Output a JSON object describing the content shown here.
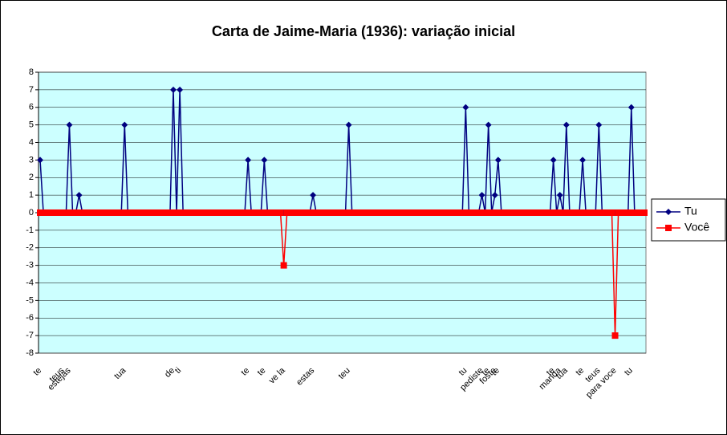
{
  "chart_data": {
    "type": "line",
    "title": "Carta de Jaime-Maria (1936): variação inicial",
    "categories": [
      "te",
      null,
      null,
      null,
      null,
      null,
      null,
      "teus",
      null,
      "estejas",
      null,
      null,
      null,
      null,
      null,
      null,
      null,
      null,
      null,
      null,
      null,
      null,
      null,
      null,
      null,
      null,
      "tua",
      null,
      null,
      null,
      null,
      null,
      null,
      null,
      null,
      null,
      null,
      null,
      null,
      null,
      null,
      "de",
      null,
      "ti",
      null,
      null,
      null,
      null,
      null,
      null,
      null,
      null,
      null,
      null,
      null,
      null,
      null,
      null,
      null,
      null,
      null,
      null,
      null,
      null,
      "te",
      null,
      null,
      null,
      null,
      "te",
      null,
      null,
      null,
      null,
      null,
      "ve la",
      null,
      null,
      null,
      null,
      null,
      null,
      null,
      null,
      "estas",
      null,
      null,
      null,
      null,
      null,
      null,
      null,
      null,
      null,
      null,
      "teu",
      null,
      null,
      null,
      null,
      null,
      null,
      null,
      null,
      null,
      null,
      null,
      null,
      null,
      null,
      null,
      null,
      null,
      null,
      null,
      null,
      null,
      null,
      null,
      null,
      null,
      null,
      null,
      null,
      null,
      null,
      null,
      null,
      null,
      null,
      null,
      "tu",
      null,
      null,
      null,
      null,
      "pediste",
      null,
      "te",
      null,
      "foste",
      "te",
      null,
      null,
      null,
      null,
      null,
      null,
      null,
      null,
      null,
      null,
      null,
      null,
      null,
      null,
      null,
      null,
      "te",
      null,
      "manda",
      null,
      "tua",
      null,
      null,
      null,
      null,
      "te",
      null,
      null,
      null,
      null,
      "teus",
      null,
      null,
      null,
      null,
      "para voce",
      null,
      null,
      null,
      null,
      "tu",
      null,
      null,
      null,
      null
    ],
    "series": [
      {
        "name": "Tu",
        "color": "#000080",
        "marker": "diamond",
        "values": [
          3,
          0,
          0,
          0,
          0,
          0,
          0,
          0,
          0,
          5,
          0,
          0,
          1,
          0,
          0,
          0,
          0,
          0,
          0,
          0,
          0,
          0,
          0,
          0,
          0,
          0,
          5,
          0,
          0,
          0,
          0,
          0,
          0,
          0,
          0,
          0,
          0,
          0,
          0,
          0,
          0,
          7,
          0,
          7,
          0,
          0,
          0,
          0,
          0,
          0,
          0,
          0,
          0,
          0,
          0,
          0,
          0,
          0,
          0,
          0,
          0,
          0,
          0,
          0,
          3,
          0,
          0,
          0,
          0,
          3,
          0,
          0,
          0,
          0,
          0,
          0,
          0,
          0,
          0,
          0,
          0,
          0,
          0,
          0,
          1,
          0,
          0,
          0,
          0,
          0,
          0,
          0,
          0,
          0,
          0,
          5,
          0,
          0,
          0,
          0,
          0,
          0,
          0,
          0,
          0,
          0,
          0,
          0,
          0,
          0,
          0,
          0,
          0,
          0,
          0,
          0,
          0,
          0,
          0,
          0,
          0,
          0,
          0,
          0,
          0,
          0,
          0,
          0,
          0,
          0,
          0,
          6,
          0,
          0,
          0,
          0,
          1,
          0,
          5,
          0,
          1,
          3,
          0,
          0,
          0,
          0,
          0,
          0,
          0,
          0,
          0,
          0,
          0,
          0,
          0,
          0,
          0,
          0,
          3,
          0,
          1,
          0,
          5,
          0,
          0,
          0,
          0,
          3,
          0,
          0,
          0,
          0,
          5,
          0,
          0,
          0,
          0,
          0,
          0,
          0,
          0,
          0,
          6,
          0,
          0,
          0,
          0
        ]
      },
      {
        "name": "Você",
        "color": "#ff0000",
        "marker": "square",
        "values": [
          0,
          0,
          0,
          0,
          0,
          0,
          0,
          0,
          0,
          0,
          0,
          0,
          0,
          0,
          0,
          0,
          0,
          0,
          0,
          0,
          0,
          0,
          0,
          0,
          0,
          0,
          0,
          0,
          0,
          0,
          0,
          0,
          0,
          0,
          0,
          0,
          0,
          0,
          0,
          0,
          0,
          0,
          0,
          0,
          0,
          0,
          0,
          0,
          0,
          0,
          0,
          0,
          0,
          0,
          0,
          0,
          0,
          0,
          0,
          0,
          0,
          0,
          0,
          0,
          0,
          0,
          0,
          0,
          0,
          0,
          0,
          0,
          0,
          0,
          0,
          -3,
          0,
          0,
          0,
          0,
          0,
          0,
          0,
          0,
          0,
          0,
          0,
          0,
          0,
          0,
          0,
          0,
          0,
          0,
          0,
          0,
          0,
          0,
          0,
          0,
          0,
          0,
          0,
          0,
          0,
          0,
          0,
          0,
          0,
          0,
          0,
          0,
          0,
          0,
          0,
          0,
          0,
          0,
          0,
          0,
          0,
          0,
          0,
          0,
          0,
          0,
          0,
          0,
          0,
          0,
          0,
          0,
          0,
          0,
          0,
          0,
          0,
          0,
          0,
          0,
          0,
          0,
          0,
          0,
          0,
          0,
          0,
          0,
          0,
          0,
          0,
          0,
          0,
          0,
          0,
          0,
          0,
          0,
          0,
          0,
          0,
          0,
          0,
          0,
          0,
          0,
          0,
          0,
          0,
          0,
          0,
          0,
          0,
          0,
          0,
          0,
          0,
          -7,
          0,
          0,
          0,
          0,
          0,
          0,
          0,
          0,
          0
        ]
      }
    ],
    "ylim": [
      -8,
      8
    ],
    "yticks": [
      -8,
      -7,
      -6,
      -5,
      -4,
      -3,
      -2,
      -1,
      0,
      1,
      2,
      3,
      4,
      5,
      6,
      7,
      8
    ],
    "grid": true,
    "legend": "right"
  }
}
